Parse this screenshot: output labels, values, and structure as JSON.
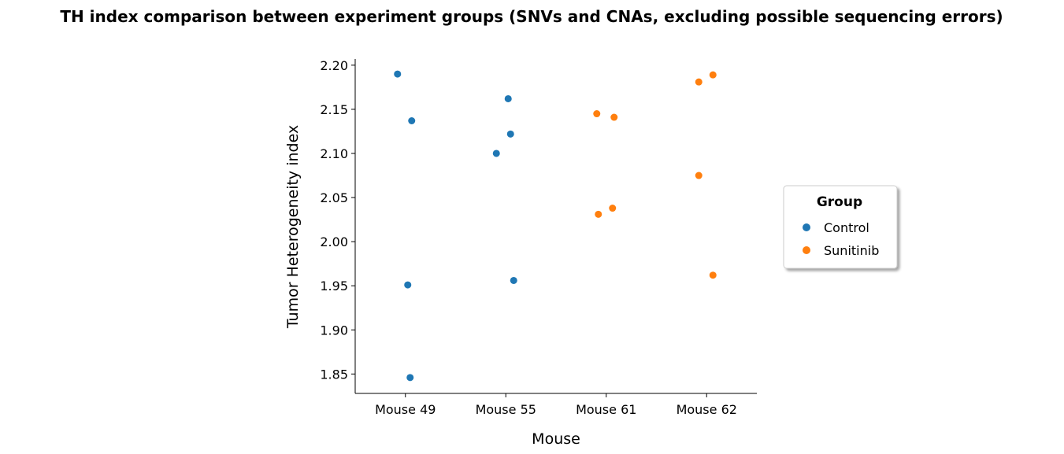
{
  "chart_data": {
    "type": "scatter",
    "title": "TH index comparison between experiment groups (SNVs and CNAs, excluding possible sequencing errors)",
    "xlabel": "Mouse",
    "ylabel": "Tumor Heterogeneity index",
    "categories": [
      "Mouse 49",
      "Mouse 55",
      "Mouse 61",
      "Mouse 62"
    ],
    "ylim": [
      1.828,
      2.207
    ],
    "yticks": [
      1.85,
      1.9,
      1.95,
      2.0,
      2.05,
      2.1,
      2.15,
      2.2
    ],
    "ytick_labels": [
      "1.85",
      "1.90",
      "1.95",
      "2.00",
      "2.05",
      "2.10",
      "2.15",
      "2.20"
    ],
    "grid": false,
    "legend": {
      "title": "Group",
      "placement": "center-right-outside",
      "entries": [
        "Control",
        "Sunitinib"
      ]
    },
    "series": [
      {
        "name": "Control",
        "color": "#1f77b4",
        "points": [
          {
            "x": "Mouse 49",
            "y": 2.19
          },
          {
            "x": "Mouse 49",
            "y": 2.137
          },
          {
            "x": "Mouse 49",
            "y": 1.951
          },
          {
            "x": "Mouse 49",
            "y": 1.846
          },
          {
            "x": "Mouse 55",
            "y": 2.162
          },
          {
            "x": "Mouse 55",
            "y": 2.122
          },
          {
            "x": "Mouse 55",
            "y": 2.1
          },
          {
            "x": "Mouse 55",
            "y": 1.956
          }
        ]
      },
      {
        "name": "Sunitinib",
        "color": "#ff7f0e",
        "points": [
          {
            "x": "Mouse 61",
            "y": 2.145
          },
          {
            "x": "Mouse 61",
            "y": 2.141
          },
          {
            "x": "Mouse 61",
            "y": 2.038
          },
          {
            "x": "Mouse 61",
            "y": 2.031
          },
          {
            "x": "Mouse 62",
            "y": 2.189
          },
          {
            "x": "Mouse 62",
            "y": 2.181
          },
          {
            "x": "Mouse 62",
            "y": 2.075
          },
          {
            "x": "Mouse 62",
            "y": 1.962
          }
        ]
      }
    ]
  }
}
